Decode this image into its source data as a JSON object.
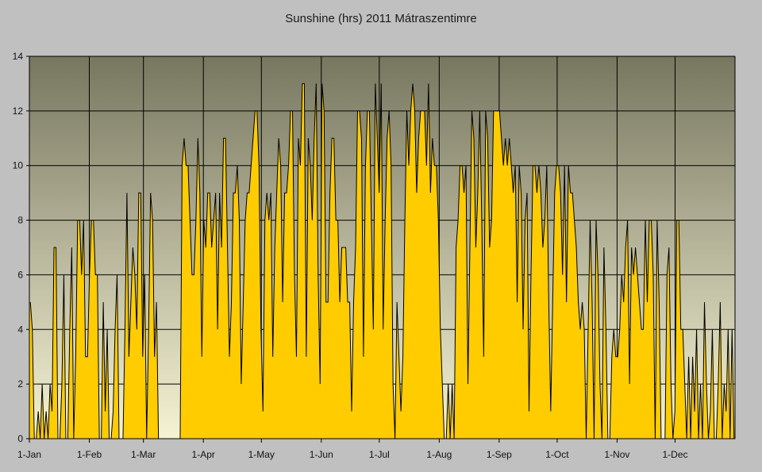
{
  "chart_data": {
    "type": "area",
    "title": "Sunshine (hrs) 2011 Mátraszentimre",
    "xlabel": "",
    "ylabel": "",
    "ylim": [
      0,
      14
    ],
    "y_ticks": [
      0,
      2,
      4,
      6,
      8,
      10,
      12,
      14
    ],
    "x_ticks": [
      "1-Jan",
      "1-Feb",
      "1-Mar",
      "1-Apr",
      "1-May",
      "1-Jun",
      "1-Jul",
      "1-Aug",
      "1-Sep",
      "1-Oct",
      "1-Nov",
      "1-Dec"
    ],
    "x_tick_days": [
      0,
      31,
      59,
      90,
      120,
      151,
      181,
      212,
      243,
      273,
      304,
      334
    ],
    "grid": true,
    "legend": "none",
    "colors": {
      "fill": "#ffcc00",
      "line": "#000000",
      "plot_top": "#777760",
      "plot_bottom": "#f6f3d4",
      "background": "#c0c0c0"
    },
    "series": [
      {
        "values": [
          5,
          4,
          0,
          0,
          1,
          0,
          2,
          0,
          1,
          0,
          2,
          1,
          7,
          7,
          0,
          0,
          2,
          6,
          0,
          0,
          4,
          7,
          0,
          3,
          8,
          8,
          6,
          8,
          3,
          3,
          6,
          8,
          8,
          6,
          6,
          0,
          0,
          5,
          1,
          4,
          0,
          0,
          1,
          4,
          6,
          0,
          0,
          0,
          4,
          9,
          3,
          5,
          7,
          6,
          4,
          9,
          9,
          3,
          6,
          0,
          4,
          9,
          8,
          3,
          5,
          0,
          0,
          0,
          0,
          0,
          0,
          0,
          0,
          0,
          0,
          0,
          0,
          10,
          11,
          10,
          10,
          8,
          6,
          6,
          8,
          11,
          9,
          3,
          8,
          7,
          9,
          9,
          7,
          8,
          9,
          4,
          9,
          7,
          11,
          11,
          7,
          3,
          5,
          9,
          9,
          10,
          8,
          2,
          5,
          8,
          9,
          9,
          10,
          11,
          12,
          12,
          10,
          4,
          1,
          8,
          9,
          8,
          9,
          3,
          7,
          9,
          11,
          10,
          5,
          9,
          9,
          10,
          12,
          12,
          6,
          3,
          11,
          10,
          13,
          13,
          3,
          11,
          10,
          8,
          11,
          13,
          6,
          2,
          13,
          12,
          5,
          5,
          9,
          11,
          11,
          8,
          8,
          5,
          7,
          7,
          7,
          5,
          5,
          1,
          5,
          7,
          12,
          12,
          11,
          3,
          10,
          12,
          12,
          8,
          4,
          13,
          11,
          9,
          13,
          4,
          8,
          11,
          12,
          10,
          2,
          0,
          5,
          3,
          1,
          3,
          8,
          12,
          10,
          12,
          13,
          12,
          9,
          11,
          12,
          12,
          12,
          10,
          13,
          9,
          11,
          10,
          10,
          8,
          4,
          2,
          0,
          0,
          2,
          0,
          2,
          0,
          7,
          8,
          10,
          10,
          9,
          10,
          2,
          7,
          12,
          11,
          7,
          9,
          12,
          8,
          3,
          12,
          11,
          7,
          8,
          12,
          12,
          12,
          12,
          11,
          10,
          11,
          10,
          11,
          10,
          9,
          10,
          5,
          10,
          9,
          4,
          8,
          9,
          1,
          6,
          10,
          10,
          9,
          10,
          9,
          7,
          8,
          10,
          5,
          1,
          5,
          9,
          10,
          10,
          9,
          6,
          10,
          5,
          10,
          9,
          9,
          8,
          7,
          5,
          4,
          5,
          4,
          0,
          4,
          8,
          5,
          0,
          8,
          6,
          2,
          0,
          7,
          4,
          0,
          0,
          3,
          4,
          3,
          3,
          4,
          6,
          5,
          7,
          8,
          2,
          7,
          6,
          7,
          6,
          5,
          4,
          4,
          8,
          5,
          8,
          8,
          6,
          0,
          8,
          5,
          0,
          0,
          0,
          6,
          7,
          2,
          0,
          1,
          8,
          8,
          4,
          4,
          2,
          0,
          3,
          0,
          3,
          1,
          4,
          0,
          2,
          0,
          5,
          2,
          0,
          1,
          4,
          0,
          0,
          2,
          5,
          0,
          2,
          1,
          4,
          0,
          4,
          0
        ]
      }
    ]
  }
}
